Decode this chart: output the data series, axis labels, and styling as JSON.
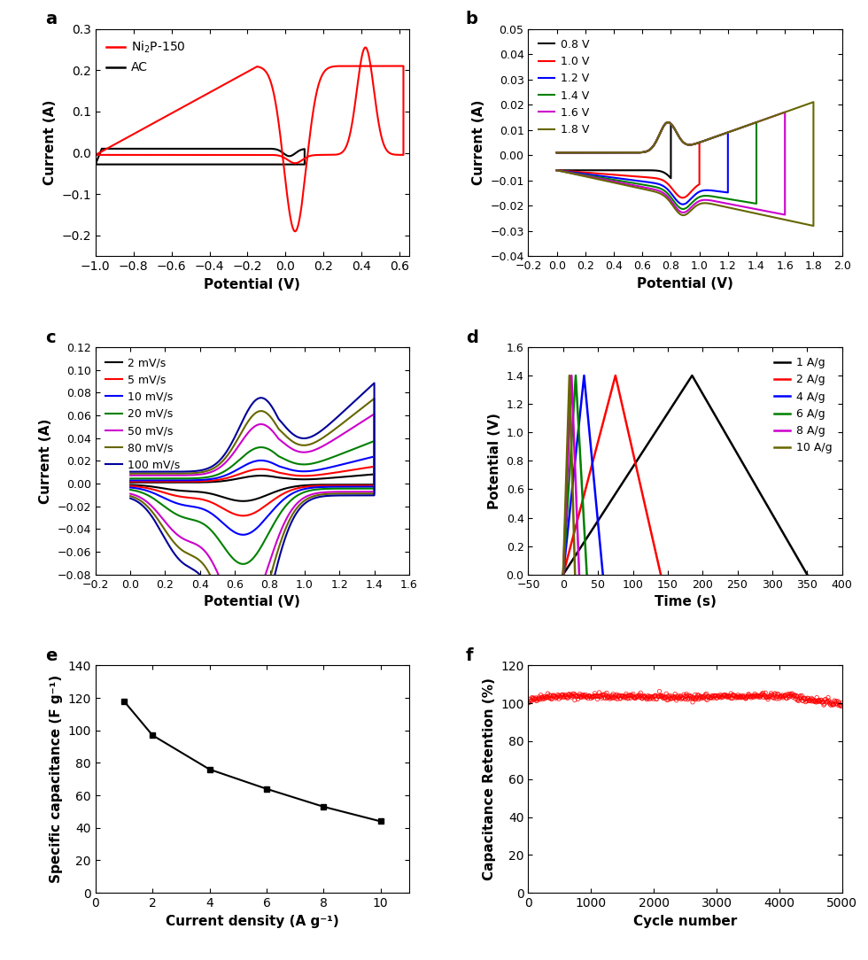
{
  "panel_a": {
    "xlabel": "Potential (V)",
    "ylabel": "Current (A)",
    "xlim": [
      -1.0,
      0.65
    ],
    "ylim": [
      -0.25,
      0.3
    ],
    "xticks": [
      -1.0,
      -0.8,
      -0.6,
      -0.4,
      -0.2,
      0.0,
      0.2,
      0.4,
      0.6
    ],
    "yticks": [
      -0.2,
      -0.1,
      0.0,
      0.1,
      0.2,
      0.3
    ],
    "legend": [
      "Ni₂P-150",
      "AC"
    ],
    "colors": [
      "#ff0000",
      "#000000"
    ]
  },
  "panel_b": {
    "xlabel": "Potential (V)",
    "ylabel": "Current (A)",
    "xlim": [
      -0.2,
      2.0
    ],
    "ylim": [
      -0.04,
      0.05
    ],
    "xticks": [
      -0.2,
      0.0,
      0.2,
      0.4,
      0.6,
      0.8,
      1.0,
      1.2,
      1.4,
      1.6,
      1.8,
      2.0
    ],
    "yticks": [
      -0.04,
      -0.03,
      -0.02,
      -0.01,
      0.0,
      0.01,
      0.02,
      0.03,
      0.04,
      0.05
    ],
    "legend": [
      "0.8 V",
      "1.0 V",
      "1.2 V",
      "1.4 V",
      "1.6 V",
      "1.8 V"
    ],
    "colors": [
      "#000000",
      "#ff0000",
      "#0000ff",
      "#008000",
      "#cc00cc",
      "#666600"
    ]
  },
  "panel_c": {
    "xlabel": "Potential (V)",
    "ylabel": "Current (A)",
    "xlim": [
      -0.2,
      1.6
    ],
    "ylim": [
      -0.08,
      0.12
    ],
    "xticks": [
      -0.2,
      0.0,
      0.2,
      0.4,
      0.6,
      0.8,
      1.0,
      1.2,
      1.4,
      1.6
    ],
    "yticks": [
      -0.08,
      -0.06,
      -0.04,
      -0.02,
      0.0,
      0.02,
      0.04,
      0.06,
      0.08,
      0.1,
      0.12
    ],
    "legend": [
      "2 mV/s",
      "5 mV/s",
      "10 mV/s",
      "20 mV/s",
      "50 mV/s",
      "80 mV/s",
      "100 mV/s"
    ],
    "colors": [
      "#000000",
      "#ff0000",
      "#0000ff",
      "#008000",
      "#cc00cc",
      "#666600",
      "#000099"
    ]
  },
  "panel_d": {
    "xlabel": "Time (s)",
    "ylabel": "Potential (V)",
    "xlim": [
      -50,
      400
    ],
    "ylim": [
      0.0,
      1.6
    ],
    "xticks": [
      -50,
      0,
      50,
      100,
      150,
      200,
      250,
      300,
      350,
      400
    ],
    "yticks": [
      0.0,
      0.2,
      0.4,
      0.6,
      0.8,
      1.0,
      1.2,
      1.4,
      1.6
    ],
    "legend": [
      "1 A/g",
      "2 A/g",
      "4 A/g",
      "6 A/g",
      "8 A/g",
      "10 A/g"
    ],
    "colors": [
      "#000000",
      "#ff0000",
      "#0000ff",
      "#008000",
      "#cc00cc",
      "#666600"
    ],
    "charge_times": [
      185,
      75,
      30,
      18,
      12,
      9
    ],
    "discharge_times": [
      165,
      65,
      27,
      16,
      11,
      8
    ]
  },
  "panel_e": {
    "xlabel": "Current density (A g⁻¹)",
    "ylabel": "Specific capacitance (F g⁻¹)",
    "xlim": [
      0,
      11
    ],
    "ylim": [
      0,
      140
    ],
    "xticks": [
      0,
      2,
      4,
      6,
      8,
      10
    ],
    "yticks": [
      0,
      10,
      20,
      30,
      40,
      50,
      60,
      70,
      80,
      90,
      100,
      110,
      120,
      130,
      140
    ],
    "x_data": [
      1,
      2,
      4,
      6,
      8,
      10
    ],
    "y_data": [
      118,
      97,
      76,
      64,
      53,
      44
    ]
  },
  "panel_f": {
    "xlabel": "Cycle number",
    "ylabel": "Capacitance Retention (%)",
    "xlim": [
      0,
      5000
    ],
    "ylim": [
      0,
      120
    ],
    "xticks": [
      0,
      1000,
      2000,
      3000,
      4000,
      5000
    ],
    "yticks": [
      0,
      20,
      40,
      60,
      80,
      100,
      120
    ],
    "color": "#ff0000"
  }
}
